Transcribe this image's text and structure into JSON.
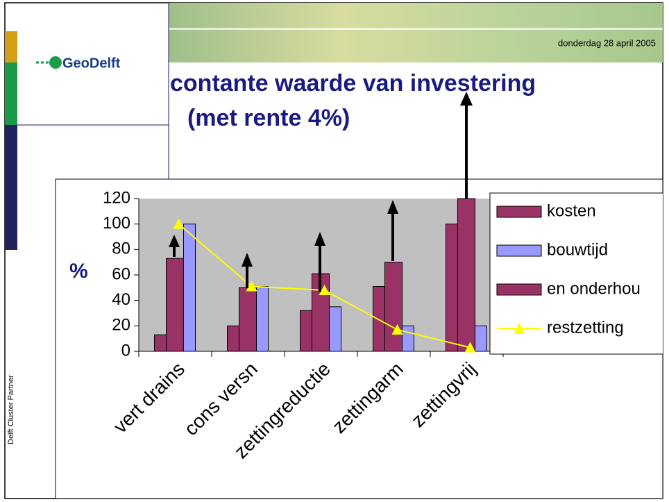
{
  "header": {
    "logo": "GeoDelft",
    "date": "donderdag 28 april 2005",
    "title_line1": "contante waarde van investering",
    "title_line2": "(met rente 4%)",
    "footer": "Delft Cluster Partner"
  },
  "chart_data": {
    "type": "bar",
    "ylabel": "%",
    "categories": [
      "vert drains",
      "cons versn",
      "zettingreductie",
      "zettingarm",
      "zettingvrij"
    ],
    "series": [
      {
        "name": "kosten",
        "color": "#993366",
        "values": [
          13,
          20,
          32,
          51,
          100
        ]
      },
      {
        "name": "bouwtijd",
        "color": "#9999ff",
        "values": [
          100,
          51,
          35,
          20,
          20
        ]
      },
      {
        "name": "en onderhou",
        "color": "#993366",
        "values": [
          73,
          50,
          61,
          70,
          120
        ]
      },
      {
        "name": "restzetting",
        "type": "line",
        "color": "#ffff00",
        "values": [
          100,
          51,
          48,
          17,
          3
        ]
      }
    ],
    "ylim": [
      0,
      120
    ],
    "yticks": [
      0,
      20,
      40,
      60,
      80,
      100,
      120
    ],
    "legend": "right"
  }
}
